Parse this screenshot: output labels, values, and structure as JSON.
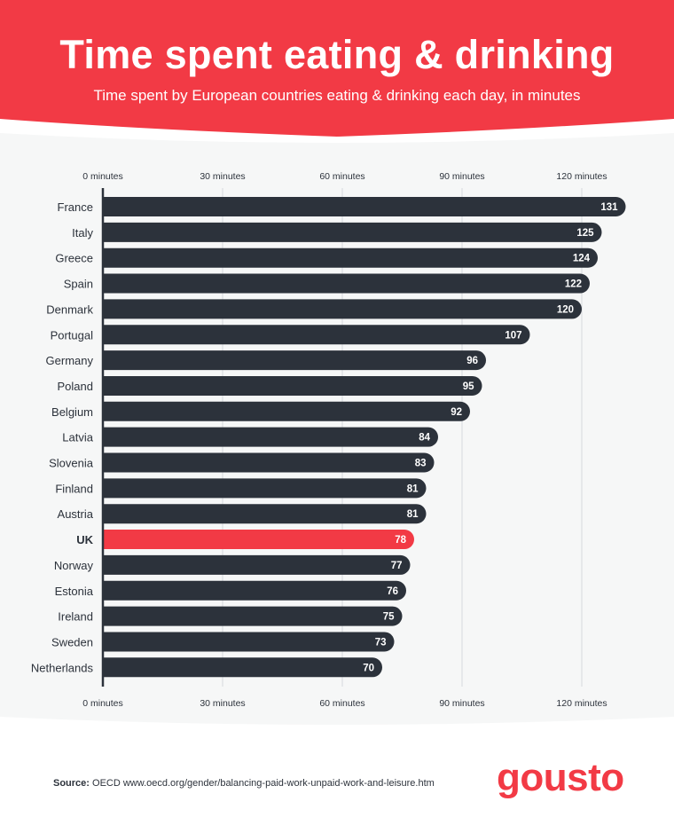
{
  "chart_data": {
    "type": "bar",
    "orientation": "horizontal",
    "title": "Time spent eating & drinking",
    "subtitle": "Time spent by European countries eating & drinking each day, in minutes",
    "categories": [
      "France",
      "Italy",
      "Greece",
      "Spain",
      "Denmark",
      "Portugal",
      "Germany",
      "Poland",
      "Belgium",
      "Latvia",
      "Slovenia",
      "Finland",
      "Austria",
      "UK",
      "Norway",
      "Estonia",
      "Ireland",
      "Sweden",
      "Netherlands"
    ],
    "values": [
      131,
      125,
      124,
      122,
      120,
      107,
      96,
      95,
      92,
      84,
      83,
      81,
      81,
      78,
      77,
      76,
      75,
      73,
      70
    ],
    "highlight": "UK",
    "xlim": [
      0,
      131
    ],
    "xticks": [
      0,
      30,
      60,
      90,
      120
    ],
    "xtick_labels": [
      "0 minutes",
      "30 minutes",
      "60 minutes",
      "90 minutes",
      "120 minutes"
    ],
    "grid": true,
    "colors": {
      "bar": "#2c323b",
      "highlight": "#f23a45",
      "grid": "#d6d9dc",
      "label": "#2c323b"
    }
  },
  "footer": {
    "source_label": "Source:",
    "source_text": "OECD www.oecd.org/gender/balancing-paid-work-unpaid-work-and-leisure.htm",
    "brand": "gousto"
  }
}
